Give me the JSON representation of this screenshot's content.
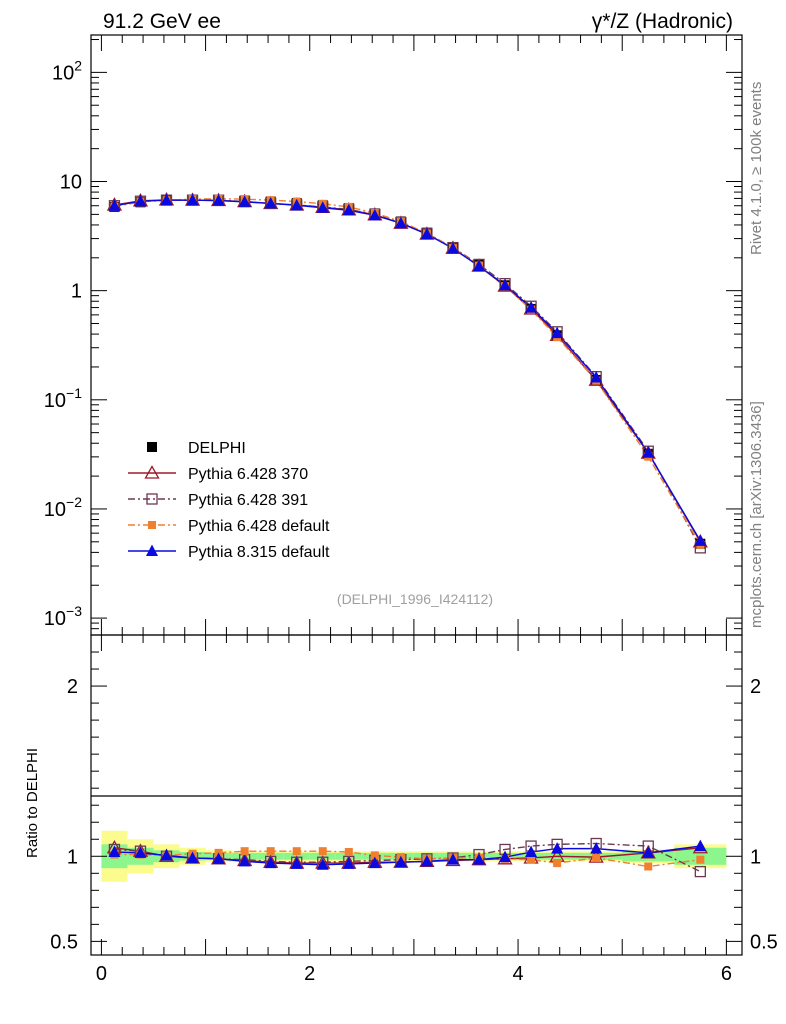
{
  "header": {
    "left_title": "91.2 GeV ee",
    "right_title": "γ*/Z (Hadronic)"
  },
  "side_notes": {
    "rivet": "Rivet 4.1.0, ≥ 100k events",
    "mcplots": "mcplots.cern.ch [arXiv:1306.3436]"
  },
  "analysis_tag": "(DELPHI_1996_I424112)",
  "chart_data": [
    {
      "type": "line",
      "panel": "main",
      "yscale": "log",
      "xlim": [
        -0.1,
        6.15
      ],
      "ylim": [
        0.0007,
        220
      ],
      "ytick_labels": [
        {
          "value": 0.001,
          "base": "10",
          "exp": "−3"
        },
        {
          "value": 0.01,
          "base": "10",
          "exp": "−2"
        },
        {
          "value": 0.1,
          "base": "10",
          "exp": "−1"
        },
        {
          "value": 1,
          "text": "1"
        },
        {
          "value": 10,
          "text": "10"
        },
        {
          "value": 100,
          "base": "10",
          "exp": "2"
        }
      ],
      "x": [
        0.125,
        0.375,
        0.625,
        0.875,
        1.125,
        1.375,
        1.625,
        1.875,
        2.125,
        2.375,
        2.625,
        2.875,
        3.125,
        3.375,
        3.625,
        3.875,
        4.125,
        4.375,
        4.75,
        5.25,
        5.75
      ],
      "series": [
        {
          "name": "DELPHI",
          "key": "data",
          "color": "#000000",
          "values": [
            5.85,
            6.45,
            6.7,
            6.8,
            6.8,
            6.7,
            6.55,
            6.35,
            6.05,
            5.7,
            5.1,
            4.3,
            3.4,
            2.5,
            1.72,
            1.12,
            0.68,
            0.39,
            0.152,
            0.032,
            0.0048
          ]
        },
        {
          "name": "Pythia 6.428 370",
          "key": "p370",
          "color": "#a0182c",
          "values": [
            6.1,
            6.65,
            6.8,
            6.75,
            6.7,
            6.55,
            6.3,
            6.1,
            5.8,
            5.5,
            4.95,
            4.15,
            3.3,
            2.45,
            1.68,
            1.1,
            0.68,
            0.39,
            0.151,
            0.0325,
            0.005
          ]
        },
        {
          "name": "Pythia 6.428 391",
          "key": "p391",
          "color": "#6b3a52",
          "values": [
            6.0,
            6.6,
            6.75,
            6.75,
            6.75,
            6.55,
            6.3,
            6.1,
            5.85,
            5.55,
            5.0,
            4.2,
            3.35,
            2.48,
            1.74,
            1.16,
            0.72,
            0.42,
            0.163,
            0.0338,
            0.0044
          ]
        },
        {
          "name": "Pythia 6.428 default",
          "key": "pdef",
          "color": "#f07f30",
          "values": [
            5.9,
            6.5,
            6.75,
            6.9,
            6.95,
            6.9,
            6.75,
            6.55,
            6.25,
            5.85,
            5.15,
            4.3,
            3.35,
            2.47,
            1.7,
            1.1,
            0.67,
            0.375,
            0.15,
            0.0301,
            0.0047
          ]
        },
        {
          "name": "Pythia 8.315 default",
          "key": "p8",
          "color": "#0a0ae0",
          "values": [
            6.0,
            6.6,
            6.75,
            6.75,
            6.7,
            6.5,
            6.3,
            6.05,
            5.75,
            5.45,
            4.9,
            4.15,
            3.3,
            2.43,
            1.68,
            1.12,
            0.7,
            0.408,
            0.16,
            0.0327,
            0.0051
          ]
        }
      ]
    },
    {
      "type": "line",
      "panel": "ratio",
      "ylabel": "Ratio to DELPHI",
      "xlim": [
        -0.1,
        6.15
      ],
      "ylim": [
        0.42,
        2.3
      ],
      "ytick_labels": [
        {
          "value": 0.5,
          "text": "0.5"
        },
        {
          "value": 1,
          "text": "1"
        },
        {
          "value": 2,
          "text": "2"
        }
      ],
      "xtick_labels": [
        {
          "value": 0,
          "text": "0"
        },
        {
          "value": 2,
          "text": "2"
        },
        {
          "value": 4,
          "text": "4"
        },
        {
          "value": 6,
          "text": "6"
        }
      ],
      "x": [
        0.125,
        0.375,
        0.625,
        0.875,
        1.125,
        1.375,
        1.625,
        1.875,
        2.125,
        2.375,
        2.625,
        2.875,
        3.125,
        3.375,
        3.625,
        3.875,
        4.125,
        4.375,
        4.75,
        5.25,
        5.75
      ],
      "bin_edges": [
        0,
        0.25,
        0.5,
        0.75,
        1.0,
        1.25,
        1.5,
        1.75,
        2.0,
        2.25,
        2.5,
        2.75,
        3.0,
        3.25,
        3.5,
        3.75,
        4.0,
        4.25,
        4.5,
        5.0,
        5.5,
        6.0
      ],
      "uncertainty_inner": [
        0.07,
        0.05,
        0.035,
        0.025,
        0.02,
        0.02,
        0.02,
        0.02,
        0.02,
        0.02,
        0.02,
        0.02,
        0.02,
        0.02,
        0.02,
        0.02,
        0.02,
        0.02,
        0.02,
        0.03,
        0.05
      ],
      "uncertainty_outer": [
        0.15,
        0.1,
        0.07,
        0.05,
        0.035,
        0.03,
        0.03,
        0.03,
        0.03,
        0.03,
        0.03,
        0.03,
        0.03,
        0.03,
        0.03,
        0.03,
        0.03,
        0.03,
        0.03,
        0.04,
        0.07
      ],
      "series": [
        {
          "key": "p370",
          "color": "#a0182c",
          "values": [
            1.05,
            1.03,
            1.0,
            0.99,
            0.985,
            0.975,
            0.965,
            0.96,
            0.96,
            0.96,
            0.965,
            0.965,
            0.97,
            0.975,
            0.98,
            0.985,
            0.99,
            1.0,
            0.995,
            1.02,
            1.05
          ]
        },
        {
          "key": "p391",
          "color": "#6b3a52",
          "values": [
            1.04,
            1.03,
            1.0,
            0.99,
            0.985,
            0.98,
            0.97,
            0.965,
            0.965,
            0.97,
            0.975,
            0.98,
            0.985,
            0.99,
            1.01,
            1.04,
            1.06,
            1.07,
            1.075,
            1.06,
            0.91
          ]
        },
        {
          "key": "pdef",
          "color": "#f07f30",
          "values": [
            1.01,
            1.01,
            1.005,
            1.015,
            1.02,
            1.03,
            1.03,
            1.03,
            1.03,
            1.025,
            1.005,
            0.995,
            0.985,
            0.99,
            0.99,
            0.985,
            0.98,
            0.96,
            0.99,
            0.94,
            0.98
          ]
        },
        {
          "key": "p8",
          "color": "#0a0ae0",
          "values": [
            1.025,
            1.02,
            1.005,
            0.99,
            0.985,
            0.97,
            0.96,
            0.955,
            0.95,
            0.955,
            0.96,
            0.965,
            0.97,
            0.98,
            0.98,
            0.995,
            1.025,
            1.045,
            1.045,
            1.02,
            1.06
          ]
        }
      ]
    }
  ]
}
